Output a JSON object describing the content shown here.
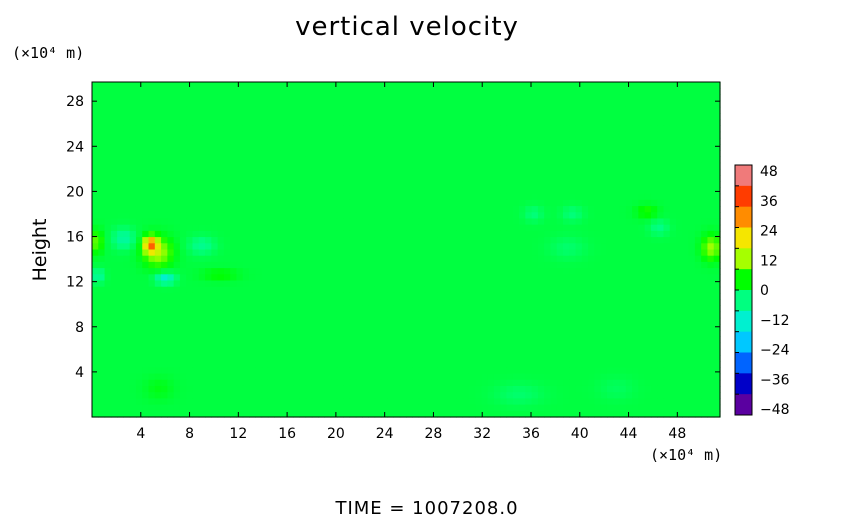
{
  "chart_data": {
    "type": "heatmap",
    "title": "vertical velocity",
    "ylabel": "Height",
    "xlabel": "",
    "x_unit": "(×10⁴ m)",
    "y_unit": "(×10⁴ m)",
    "xlim": [
      0,
      51.5
    ],
    "ylim": [
      0,
      29.7
    ],
    "x_ticks": [
      4,
      8,
      12,
      16,
      20,
      24,
      28,
      32,
      36,
      40,
      44,
      48
    ],
    "y_ticks": [
      4,
      8,
      12,
      16,
      20,
      24,
      28
    ],
    "colorbar": {
      "ticks": [
        48,
        36,
        24,
        12,
        0,
        -12,
        -24,
        -36,
        -48
      ],
      "range": [
        -48,
        48
      ],
      "colors": [
        "#f07a7a",
        "#ff3c00",
        "#ff8c00",
        "#f5e600",
        "#a6ff00",
        "#00ff00",
        "#00ff80",
        "#00f0d0",
        "#00c8ff",
        "#0064ff",
        "#0000c8",
        "#5a00a0"
      ]
    },
    "background_value": 0,
    "features": [
      {
        "x": 4.8,
        "y": 15.3,
        "value": 28,
        "sx": 0.55,
        "sy": 0.7
      },
      {
        "x": 5.4,
        "y": 14.6,
        "value": 14,
        "sx": 1.2,
        "sy": 1.3
      },
      {
        "x": 6.0,
        "y": 12.3,
        "value": -14,
        "sx": 0.8,
        "sy": 0.5
      },
      {
        "x": 2.6,
        "y": 15.8,
        "value": -8,
        "sx": 0.9,
        "sy": 0.9
      },
      {
        "x": 0.4,
        "y": 15.5,
        "value": 10,
        "sx": 0.5,
        "sy": 1.0
      },
      {
        "x": 0.5,
        "y": 12.5,
        "value": -8,
        "sx": 0.5,
        "sy": 0.6
      },
      {
        "x": 9.0,
        "y": 15.2,
        "value": -6,
        "sx": 1.1,
        "sy": 0.8
      },
      {
        "x": 10.5,
        "y": 12.6,
        "value": 5,
        "sx": 1.5,
        "sy": 0.5
      },
      {
        "x": 45.5,
        "y": 18.2,
        "value": 6,
        "sx": 0.9,
        "sy": 0.6
      },
      {
        "x": 46.5,
        "y": 16.8,
        "value": -5,
        "sx": 0.8,
        "sy": 0.7
      },
      {
        "x": 50.8,
        "y": 15.0,
        "value": 13,
        "sx": 0.8,
        "sy": 1.1
      },
      {
        "x": 36.2,
        "y": 18.0,
        "value": -4,
        "sx": 0.8,
        "sy": 0.7
      },
      {
        "x": 39.4,
        "y": 18.0,
        "value": -4,
        "sx": 0.9,
        "sy": 0.7
      },
      {
        "x": 39.0,
        "y": 15.0,
        "value": -3,
        "sx": 1.5,
        "sy": 1.0
      },
      {
        "x": 5.5,
        "y": 2.5,
        "value": 3,
        "sx": 1.2,
        "sy": 1.0
      },
      {
        "x": 35.0,
        "y": 2.0,
        "value": -3,
        "sx": 2.0,
        "sy": 1.0
      },
      {
        "x": 43.0,
        "y": 2.5,
        "value": -2,
        "sx": 1.5,
        "sy": 1.0
      }
    ]
  },
  "footer": {
    "time_label": "TIME  =  1007208.0"
  }
}
